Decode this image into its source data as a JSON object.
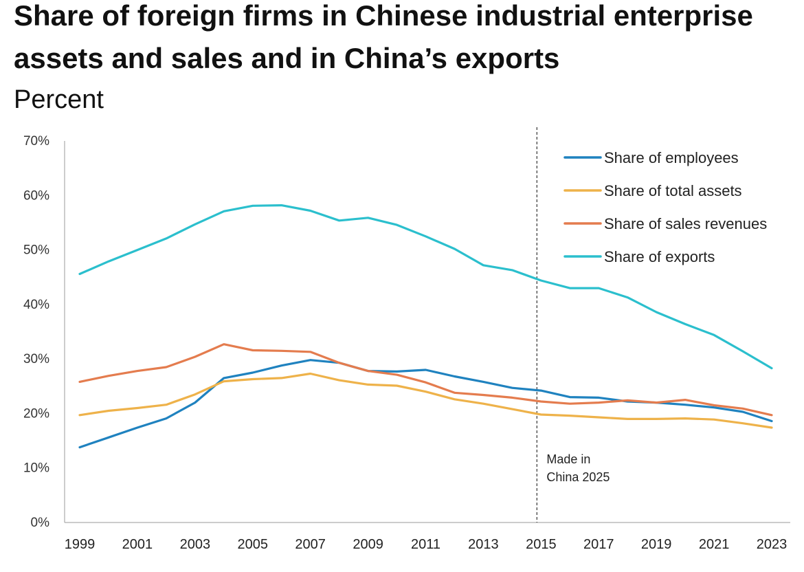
{
  "title": "Share of foreign firms in Chinese industrial enterprise assets and sales and in China’s exports",
  "subtitle": "Percent",
  "chart_data": {
    "type": "line",
    "ylim": [
      0,
      70
    ],
    "y_ticks": [
      "0%",
      "10%",
      "20%",
      "30%",
      "40%",
      "50%",
      "60%",
      "70%"
    ],
    "y_tick_values": [
      0,
      10,
      20,
      30,
      40,
      50,
      60,
      70
    ],
    "x_tick_labels": [
      "1999",
      "2001",
      "2003",
      "2005",
      "2007",
      "2009",
      "2011",
      "2013",
      "2015",
      "2017",
      "2019",
      "2021",
      "2023"
    ],
    "x": [
      1999,
      2000,
      2001,
      2002,
      2003,
      2004,
      2005,
      2006,
      2007,
      2008,
      2009,
      2010,
      2011,
      2012,
      2013,
      2014,
      2015,
      2016,
      2017,
      2018,
      2019,
      2020,
      2021,
      2022,
      2023
    ],
    "xlim": [
      1999,
      2023
    ],
    "legend_position": "top-right",
    "grid": false,
    "series": [
      {
        "name": "Share of employees",
        "color": "#1f82bf",
        "values": [
          13.8,
          15.6,
          17.4,
          19.1,
          22.0,
          26.5,
          27.5,
          28.8,
          29.8,
          29.3,
          27.8,
          27.7,
          28.0,
          26.8,
          25.8,
          24.7,
          24.2,
          23.0,
          22.9,
          22.2,
          22.0,
          21.6,
          21.1,
          20.3,
          18.6
        ]
      },
      {
        "name": "Share of total assets",
        "color": "#eeb24a",
        "values": [
          19.7,
          20.5,
          21.0,
          21.6,
          23.5,
          25.9,
          26.3,
          26.5,
          27.3,
          26.1,
          25.3,
          25.1,
          24.0,
          22.6,
          21.8,
          20.8,
          19.8,
          19.6,
          19.3,
          19.0,
          19.0,
          19.1,
          18.9,
          18.2,
          17.4
        ]
      },
      {
        "name": "Share of sales revenues",
        "color": "#e47c4e",
        "values": [
          25.8,
          26.9,
          27.8,
          28.5,
          30.4,
          32.7,
          31.6,
          31.5,
          31.3,
          29.3,
          27.8,
          27.1,
          25.7,
          23.8,
          23.4,
          22.9,
          22.2,
          21.8,
          22.0,
          22.4,
          22.0,
          22.5,
          21.5,
          20.9,
          19.7
        ]
      },
      {
        "name": "Share of exports",
        "color": "#2bbfcd",
        "values": [
          45.6,
          47.9,
          50.0,
          52.1,
          54.7,
          57.1,
          58.1,
          58.2,
          57.2,
          55.4,
          55.9,
          54.6,
          52.5,
          50.2,
          47.2,
          46.3,
          44.4,
          43.0,
          43.0,
          41.3,
          38.6,
          36.4,
          34.4,
          31.4,
          28.3
        ]
      }
    ],
    "annotations": [
      {
        "x": 2015,
        "style": "dashed-vertical-line",
        "text_lines": [
          "Made in",
          "China 2025"
        ]
      }
    ]
  }
}
